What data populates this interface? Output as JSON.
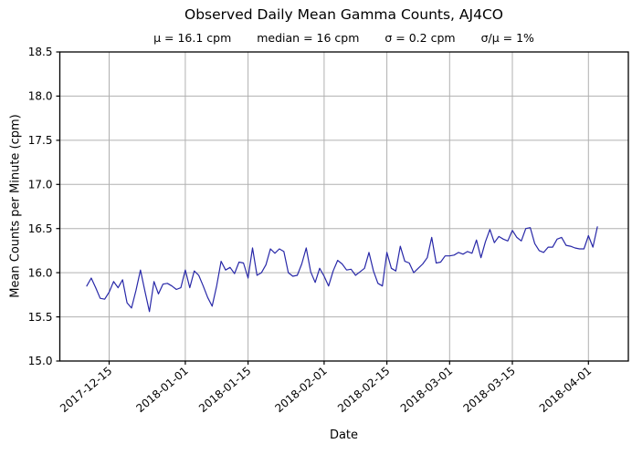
{
  "header": {
    "title": "Observed Daily Mean Gamma Counts, AJ4CO",
    "stats": {
      "mu": "μ = 16.1 cpm",
      "median": "median = 16 cpm",
      "sigma": "σ = 0.2 cpm",
      "sigma_over_mu": "σ/μ = 1%"
    }
  },
  "chart_data": {
    "type": "line",
    "title": "Observed Daily Mean Gamma Counts, AJ4CO",
    "subtitle": "μ = 16.1 cpm    median = 16 cpm    σ = 0.2 cpm    σ/μ = 1%",
    "xlabel": "Date",
    "ylabel": "Mean Counts per Minute (cpm)",
    "ylim": [
      15.0,
      18.5
    ],
    "grid": true,
    "legend": "none",
    "line_color": "#2828a8",
    "grid_color": "#b0b0b0",
    "spine_color": "#000000",
    "yticks": [
      {
        "label": "15.0",
        "value": 15.0
      },
      {
        "label": "15.5",
        "value": 15.5
      },
      {
        "label": "16.0",
        "value": 16.0
      },
      {
        "label": "16.5",
        "value": 16.5
      },
      {
        "label": "17.0",
        "value": 17.0
      },
      {
        "label": "17.5",
        "value": 17.5
      },
      {
        "label": "18.0",
        "value": 18.0
      },
      {
        "label": "18.5",
        "value": 18.5
      }
    ],
    "xticks": [
      {
        "label": "2017-12-15",
        "date": "2017-12-15"
      },
      {
        "label": "2018-01-01",
        "date": "2018-01-01"
      },
      {
        "label": "2018-01-15",
        "date": "2018-01-15"
      },
      {
        "label": "2018-02-01",
        "date": "2018-02-01"
      },
      {
        "label": "2018-02-15",
        "date": "2018-02-15"
      },
      {
        "label": "2018-03-01",
        "date": "2018-03-01"
      },
      {
        "label": "2018-03-15",
        "date": "2018-03-15"
      },
      {
        "label": "2018-04-01",
        "date": "2018-04-01"
      }
    ],
    "dates": [
      "2017-12-10",
      "2017-12-11",
      "2017-12-12",
      "2017-12-13",
      "2017-12-14",
      "2017-12-15",
      "2017-12-16",
      "2017-12-17",
      "2017-12-18",
      "2017-12-19",
      "2017-12-20",
      "2017-12-21",
      "2017-12-22",
      "2017-12-23",
      "2017-12-24",
      "2017-12-25",
      "2017-12-26",
      "2017-12-27",
      "2017-12-28",
      "2017-12-29",
      "2017-12-30",
      "2017-12-31",
      "2018-01-01",
      "2018-01-02",
      "2018-01-03",
      "2018-01-04",
      "2018-01-05",
      "2018-01-06",
      "2018-01-07",
      "2018-01-08",
      "2018-01-09",
      "2018-01-10",
      "2018-01-11",
      "2018-01-12",
      "2018-01-13",
      "2018-01-14",
      "2018-01-15",
      "2018-01-16",
      "2018-01-17",
      "2018-01-18",
      "2018-01-19",
      "2018-01-20",
      "2018-01-21",
      "2018-01-22",
      "2018-01-23",
      "2018-01-24",
      "2018-01-25",
      "2018-01-26",
      "2018-01-27",
      "2018-01-28",
      "2018-01-29",
      "2018-01-30",
      "2018-01-31",
      "2018-02-01",
      "2018-02-02",
      "2018-02-03",
      "2018-02-04",
      "2018-02-05",
      "2018-02-06",
      "2018-02-07",
      "2018-02-08",
      "2018-02-09",
      "2018-02-10",
      "2018-02-11",
      "2018-02-12",
      "2018-02-13",
      "2018-02-14",
      "2018-02-15",
      "2018-02-16",
      "2018-02-17",
      "2018-02-18",
      "2018-02-19",
      "2018-02-20",
      "2018-02-21",
      "2018-02-22",
      "2018-02-23",
      "2018-02-24",
      "2018-02-25",
      "2018-02-26",
      "2018-02-27",
      "2018-02-28",
      "2018-03-01",
      "2018-03-02",
      "2018-03-03",
      "2018-03-04",
      "2018-03-05",
      "2018-03-06",
      "2018-03-07",
      "2018-03-08",
      "2018-03-09",
      "2018-03-10",
      "2018-03-11",
      "2018-03-12",
      "2018-03-13",
      "2018-03-14",
      "2018-03-15",
      "2018-03-16",
      "2018-03-17",
      "2018-03-18",
      "2018-03-19",
      "2018-03-20",
      "2018-03-21",
      "2018-03-22",
      "2018-03-23",
      "2018-03-24",
      "2018-03-25",
      "2018-03-26",
      "2018-03-27",
      "2018-03-28",
      "2018-03-29",
      "2018-03-30",
      "2018-03-31",
      "2018-04-01",
      "2018-04-02",
      "2018-04-03"
    ],
    "values": [
      15.85,
      15.94,
      15.83,
      15.71,
      15.7,
      15.78,
      15.9,
      15.83,
      15.92,
      15.66,
      15.6,
      15.8,
      16.03,
      15.79,
      15.56,
      15.9,
      15.76,
      15.87,
      15.88,
      15.85,
      15.81,
      15.83,
      16.03,
      15.83,
      16.02,
      15.97,
      15.85,
      15.72,
      15.62,
      15.85,
      16.13,
      16.03,
      16.06,
      15.99,
      16.12,
      16.11,
      15.94,
      16.28,
      15.97,
      16.0,
      16.09,
      16.27,
      16.22,
      16.27,
      16.24,
      16.0,
      15.96,
      15.97,
      16.1,
      16.28,
      16.01,
      15.89,
      16.05,
      15.96,
      15.85,
      16.02,
      16.14,
      16.1,
      16.03,
      16.04,
      15.97,
      16.01,
      16.05,
      16.23,
      16.02,
      15.88,
      15.85,
      16.23,
      16.05,
      16.02,
      16.3,
      16.13,
      16.11,
      16.0,
      16.05,
      16.1,
      16.17,
      16.4,
      16.11,
      16.12,
      16.19,
      16.19,
      16.2,
      16.23,
      16.21,
      16.24,
      16.22,
      16.37,
      16.17,
      16.35,
      16.49,
      16.34,
      16.41,
      16.38,
      16.36,
      16.48,
      16.4,
      16.36,
      16.5,
      16.51,
      16.33,
      16.25,
      16.23,
      16.29,
      16.29,
      16.38,
      16.4,
      16.31,
      16.3,
      16.28,
      16.27,
      16.27,
      16.42,
      16.29,
      16.52
    ]
  }
}
